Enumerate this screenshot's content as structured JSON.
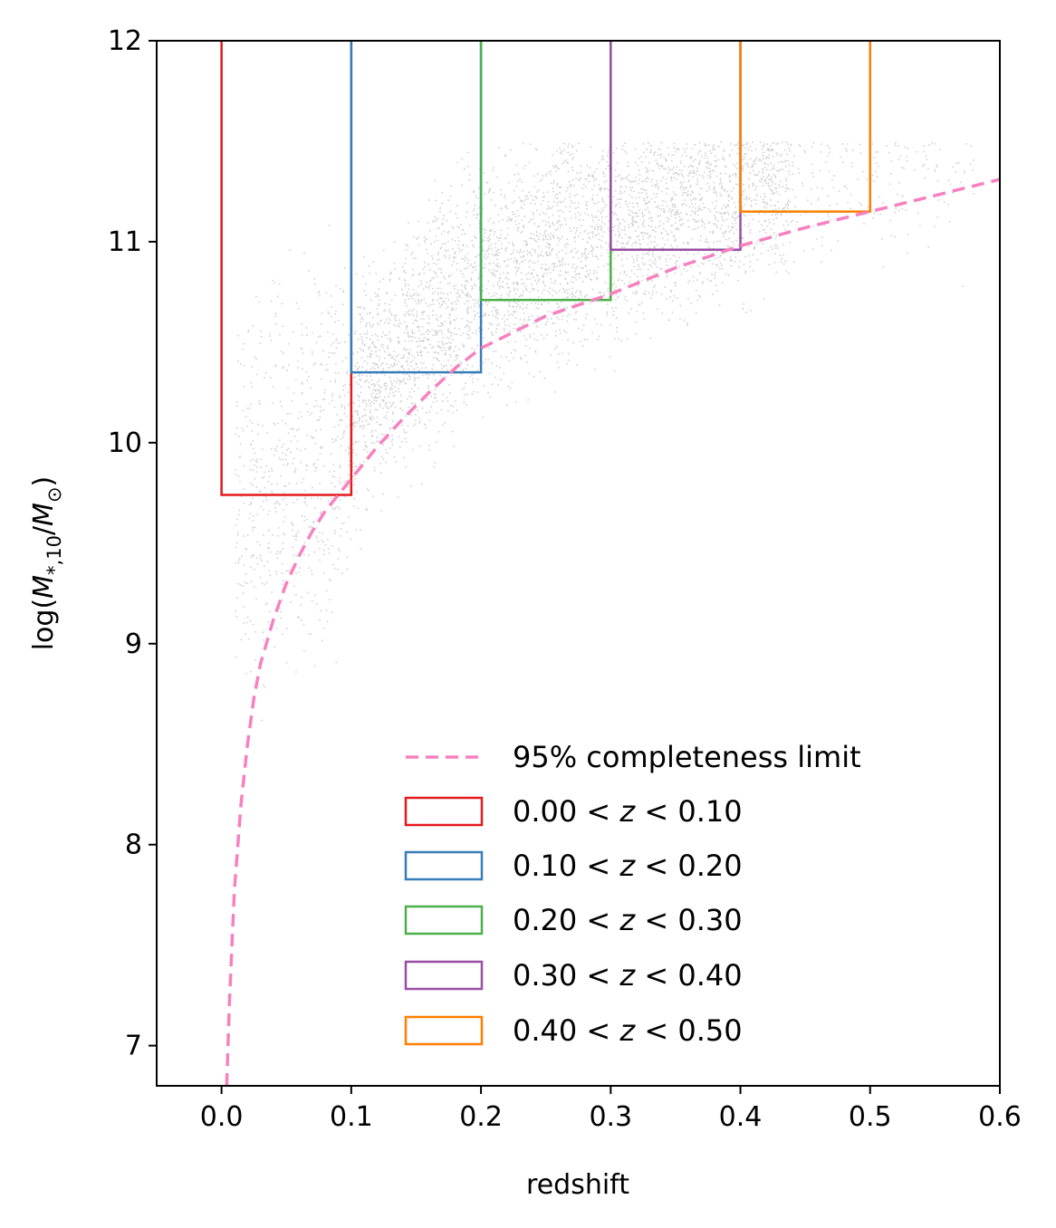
{
  "chart_data": {
    "type": "scatter",
    "title": "",
    "xlabel": "redshift",
    "ylabel": "log(M*,10/M⊙)",
    "ylabel_parts": {
      "pre": "log(",
      "sym": "M",
      "sub": "*,10",
      "slash": "/",
      "sym2": "M",
      "sub2": "⊙",
      "post": ")"
    },
    "xlim": [
      -0.05,
      0.6
    ],
    "ylim": [
      6.8,
      12
    ],
    "xticks": [
      0.0,
      0.1,
      0.2,
      0.3,
      0.4,
      0.5,
      0.6
    ],
    "xtick_labels": [
      "0.0",
      "0.1",
      "0.2",
      "0.3",
      "0.4",
      "0.5",
      "0.6"
    ],
    "yticks": [
      7,
      8,
      9,
      10,
      11,
      12
    ],
    "ytick_labels": [
      "7",
      "8",
      "9",
      "10",
      "11",
      "12"
    ],
    "scatter_color": "#999999",
    "completeness_limit": {
      "name": "95% completeness limit",
      "color": "#f781bf",
      "x": [
        0.004,
        0.006,
        0.008,
        0.01,
        0.015,
        0.02,
        0.025,
        0.03,
        0.04,
        0.05,
        0.06,
        0.07,
        0.08,
        0.09,
        0.1,
        0.12,
        0.14,
        0.16,
        0.18,
        0.2,
        0.25,
        0.3,
        0.35,
        0.4,
        0.45,
        0.5,
        0.55,
        0.6
      ],
      "y": [
        6.8,
        7.2,
        7.5,
        7.78,
        8.2,
        8.5,
        8.73,
        8.9,
        9.12,
        9.3,
        9.44,
        9.56,
        9.66,
        9.74,
        9.82,
        9.98,
        10.12,
        10.25,
        10.37,
        10.47,
        10.63,
        10.74,
        10.87,
        10.98,
        11.07,
        11.15,
        11.23,
        11.31
      ]
    },
    "bins": [
      {
        "label": "0.00 < z < 0.10",
        "lo": "0.00",
        "hi": "0.10",
        "zmin": 0.0,
        "zmax": 0.1,
        "mass_min": 9.74,
        "color": "#e41a1c"
      },
      {
        "label": "0.10 < z < 0.20",
        "lo": "0.10",
        "hi": "0.20",
        "zmin": 0.1,
        "zmax": 0.2,
        "mass_min": 10.35,
        "color": "#377eb8"
      },
      {
        "label": "0.20 < z < 0.30",
        "lo": "0.20",
        "hi": "0.30",
        "zmin": 0.2,
        "zmax": 0.3,
        "mass_min": 10.71,
        "color": "#4daf4a"
      },
      {
        "label": "0.30 < z < 0.40",
        "lo": "0.30",
        "hi": "0.40",
        "zmin": 0.3,
        "zmax": 0.4,
        "mass_min": 10.96,
        "color": "#984ea3"
      },
      {
        "label": "0.40 < z < 0.50",
        "lo": "0.40",
        "hi": "0.50",
        "zmin": 0.4,
        "zmax": 0.5,
        "mass_min": 11.15,
        "color": "#ff7f00"
      }
    ],
    "legend_loc": "lower-right",
    "grid": false
  }
}
